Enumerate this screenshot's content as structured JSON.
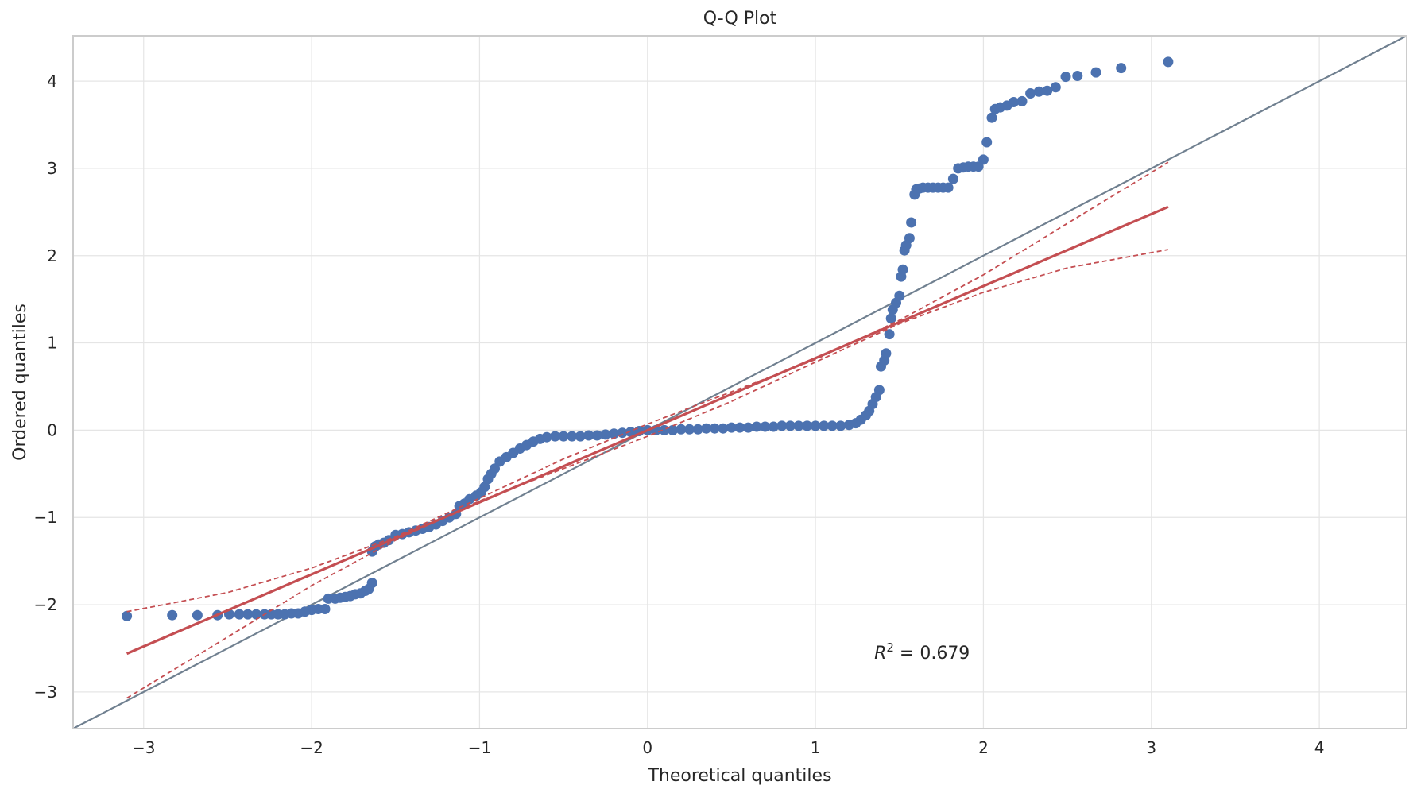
{
  "chart_data": {
    "type": "scatter",
    "title": "Q-Q Plot",
    "xlabel": "Theoretical quantiles",
    "ylabel": "Ordered quantiles",
    "xlim": [
      -3.42,
      4.52
    ],
    "ylim": [
      -3.42,
      4.52
    ],
    "xticks": [
      -3,
      -2,
      -1,
      0,
      1,
      2,
      3,
      4
    ],
    "yticks": [
      -3,
      -2,
      -1,
      0,
      1,
      2,
      3,
      4
    ],
    "xtick_labels": [
      "−3",
      "−2",
      "−1",
      "0",
      "1",
      "2",
      "3",
      "4"
    ],
    "ytick_labels": [
      "−3",
      "−2",
      "−1",
      "0",
      "1",
      "2",
      "3",
      "4"
    ],
    "grid": true,
    "annotation": {
      "text_main": "R",
      "text_sup": "2",
      "text_rest": " = 0.679",
      "x": 1.35,
      "y": -2.62
    },
    "reference_line": {
      "name": "45-degree line",
      "points": [
        [
          -3.42,
          -3.42
        ],
        [
          4.52,
          4.52
        ]
      ],
      "color": "#708090"
    },
    "fit_line": {
      "points": [
        [
          -3.1,
          -2.56
        ],
        [
          3.1,
          2.56
        ]
      ],
      "color": "#c44e52"
    },
    "confidence_upper": {
      "points": [
        [
          -3.1,
          -2.08
        ],
        [
          -2.5,
          -1.86
        ],
        [
          -2.0,
          -1.58
        ],
        [
          -1.5,
          -1.22
        ],
        [
          -1.0,
          -0.78
        ],
        [
          -0.5,
          -0.33
        ],
        [
          0,
          0.07
        ],
        [
          0.5,
          0.44
        ],
        [
          1.0,
          0.81
        ],
        [
          1.5,
          1.26
        ],
        [
          2.0,
          1.78
        ],
        [
          2.5,
          2.37
        ],
        [
          3.1,
          3.07
        ]
      ],
      "color": "#c44e52"
    },
    "confidence_lower": {
      "points": [
        [
          -3.1,
          -3.07
        ],
        [
          -2.5,
          -2.37
        ],
        [
          -2.0,
          -1.78
        ],
        [
          -1.5,
          -1.26
        ],
        [
          -1.0,
          -0.81
        ],
        [
          -0.5,
          -0.44
        ],
        [
          0,
          -0.07
        ],
        [
          0.5,
          0.33
        ],
        [
          1.0,
          0.78
        ],
        [
          1.5,
          1.22
        ],
        [
          2.0,
          1.58
        ],
        [
          2.5,
          1.86
        ],
        [
          3.1,
          2.07
        ]
      ],
      "color": "#c44e52"
    },
    "series": [
      {
        "color": "#4c72b0",
        "points": [
          [
            -3.1,
            -2.13
          ],
          [
            -2.83,
            -2.12
          ],
          [
            -2.68,
            -2.12
          ],
          [
            -2.56,
            -2.12
          ],
          [
            -2.49,
            -2.11
          ],
          [
            -2.43,
            -2.11
          ],
          [
            -2.38,
            -2.11
          ],
          [
            -2.33,
            -2.11
          ],
          [
            -2.28,
            -2.11
          ],
          [
            -2.24,
            -2.11
          ],
          [
            -2.2,
            -2.11
          ],
          [
            -2.16,
            -2.11
          ],
          [
            -2.12,
            -2.1
          ],
          [
            -2.08,
            -2.1
          ],
          [
            -2.04,
            -2.08
          ],
          [
            -2.0,
            -2.06
          ],
          [
            -1.96,
            -2.05
          ],
          [
            -1.92,
            -2.05
          ],
          [
            -1.9,
            -1.93
          ],
          [
            -1.86,
            -1.93
          ],
          [
            -1.83,
            -1.92
          ],
          [
            -1.8,
            -1.91
          ],
          [
            -1.77,
            -1.9
          ],
          [
            -1.74,
            -1.88
          ],
          [
            -1.71,
            -1.87
          ],
          [
            -1.68,
            -1.84
          ],
          [
            -1.66,
            -1.82
          ],
          [
            -1.64,
            -1.75
          ],
          [
            -1.64,
            -1.39
          ],
          [
            -1.62,
            -1.33
          ],
          [
            -1.6,
            -1.31
          ],
          [
            -1.57,
            -1.29
          ],
          [
            -1.54,
            -1.26
          ],
          [
            -1.5,
            -1.2
          ],
          [
            -1.46,
            -1.19
          ],
          [
            -1.42,
            -1.17
          ],
          [
            -1.38,
            -1.15
          ],
          [
            -1.34,
            -1.13
          ],
          [
            -1.3,
            -1.11
          ],
          [
            -1.26,
            -1.08
          ],
          [
            -1.22,
            -1.04
          ],
          [
            -1.18,
            -1.0
          ],
          [
            -1.14,
            -0.96
          ],
          [
            -1.12,
            -0.87
          ],
          [
            -1.09,
            -0.84
          ],
          [
            -1.06,
            -0.79
          ],
          [
            -1.02,
            -0.75
          ],
          [
            -0.99,
            -0.71
          ],
          [
            -0.97,
            -0.65
          ],
          [
            -0.95,
            -0.56
          ],
          [
            -0.93,
            -0.5
          ],
          [
            -0.91,
            -0.44
          ],
          [
            -0.88,
            -0.36
          ],
          [
            -0.84,
            -0.31
          ],
          [
            -0.8,
            -0.26
          ],
          [
            -0.76,
            -0.21
          ],
          [
            -0.72,
            -0.17
          ],
          [
            -0.68,
            -0.13
          ],
          [
            -0.64,
            -0.1
          ],
          [
            -0.6,
            -0.08
          ],
          [
            -0.55,
            -0.07
          ],
          [
            -0.5,
            -0.07
          ],
          [
            -0.45,
            -0.07
          ],
          [
            -0.4,
            -0.07
          ],
          [
            -0.35,
            -0.06
          ],
          [
            -0.3,
            -0.06
          ],
          [
            -0.25,
            -0.05
          ],
          [
            -0.2,
            -0.04
          ],
          [
            -0.15,
            -0.03
          ],
          [
            -0.1,
            -0.02
          ],
          [
            -0.05,
            -0.01
          ],
          [
            0.0,
            0.0
          ],
          [
            0.05,
            0.0
          ],
          [
            0.1,
            0.0
          ],
          [
            0.15,
            0.0
          ],
          [
            0.2,
            0.01
          ],
          [
            0.25,
            0.01
          ],
          [
            0.3,
            0.01
          ],
          [
            0.35,
            0.02
          ],
          [
            0.4,
            0.02
          ],
          [
            0.45,
            0.02
          ],
          [
            0.5,
            0.03
          ],
          [
            0.55,
            0.03
          ],
          [
            0.6,
            0.03
          ],
          [
            0.65,
            0.04
          ],
          [
            0.7,
            0.04
          ],
          [
            0.75,
            0.04
          ],
          [
            0.8,
            0.05
          ],
          [
            0.85,
            0.05
          ],
          [
            0.9,
            0.05
          ],
          [
            0.95,
            0.05
          ],
          [
            1.0,
            0.05
          ],
          [
            1.05,
            0.05
          ],
          [
            1.1,
            0.05
          ],
          [
            1.15,
            0.05
          ],
          [
            1.2,
            0.06
          ],
          [
            1.24,
            0.08
          ],
          [
            1.27,
            0.12
          ],
          [
            1.3,
            0.17
          ],
          [
            1.32,
            0.22
          ],
          [
            1.34,
            0.3
          ],
          [
            1.36,
            0.38
          ],
          [
            1.38,
            0.46
          ],
          [
            1.39,
            0.73
          ],
          [
            1.41,
            0.8
          ],
          [
            1.42,
            0.88
          ],
          [
            1.44,
            1.1
          ],
          [
            1.45,
            1.28
          ],
          [
            1.46,
            1.38
          ],
          [
            1.48,
            1.46
          ],
          [
            1.5,
            1.54
          ],
          [
            1.51,
            1.76
          ],
          [
            1.52,
            1.84
          ],
          [
            1.53,
            2.06
          ],
          [
            1.54,
            2.12
          ],
          [
            1.56,
            2.2
          ],
          [
            1.57,
            2.38
          ],
          [
            1.59,
            2.7
          ],
          [
            1.6,
            2.76
          ],
          [
            1.62,
            2.77
          ],
          [
            1.64,
            2.78
          ],
          [
            1.67,
            2.78
          ],
          [
            1.7,
            2.78
          ],
          [
            1.73,
            2.78
          ],
          [
            1.76,
            2.78
          ],
          [
            1.79,
            2.78
          ],
          [
            1.82,
            2.88
          ],
          [
            1.85,
            3.0
          ],
          [
            1.88,
            3.01
          ],
          [
            1.91,
            3.02
          ],
          [
            1.94,
            3.02
          ],
          [
            1.97,
            3.02
          ],
          [
            2.0,
            3.1
          ],
          [
            2.02,
            3.3
          ],
          [
            2.05,
            3.58
          ],
          [
            2.07,
            3.68
          ],
          [
            2.1,
            3.7
          ],
          [
            2.14,
            3.72
          ],
          [
            2.18,
            3.76
          ],
          [
            2.23,
            3.77
          ],
          [
            2.28,
            3.86
          ],
          [
            2.33,
            3.88
          ],
          [
            2.38,
            3.89
          ],
          [
            2.43,
            3.93
          ],
          [
            2.49,
            4.05
          ],
          [
            2.56,
            4.06
          ],
          [
            2.67,
            4.1
          ],
          [
            2.82,
            4.15
          ],
          [
            3.1,
            4.22
          ]
        ]
      }
    ]
  }
}
